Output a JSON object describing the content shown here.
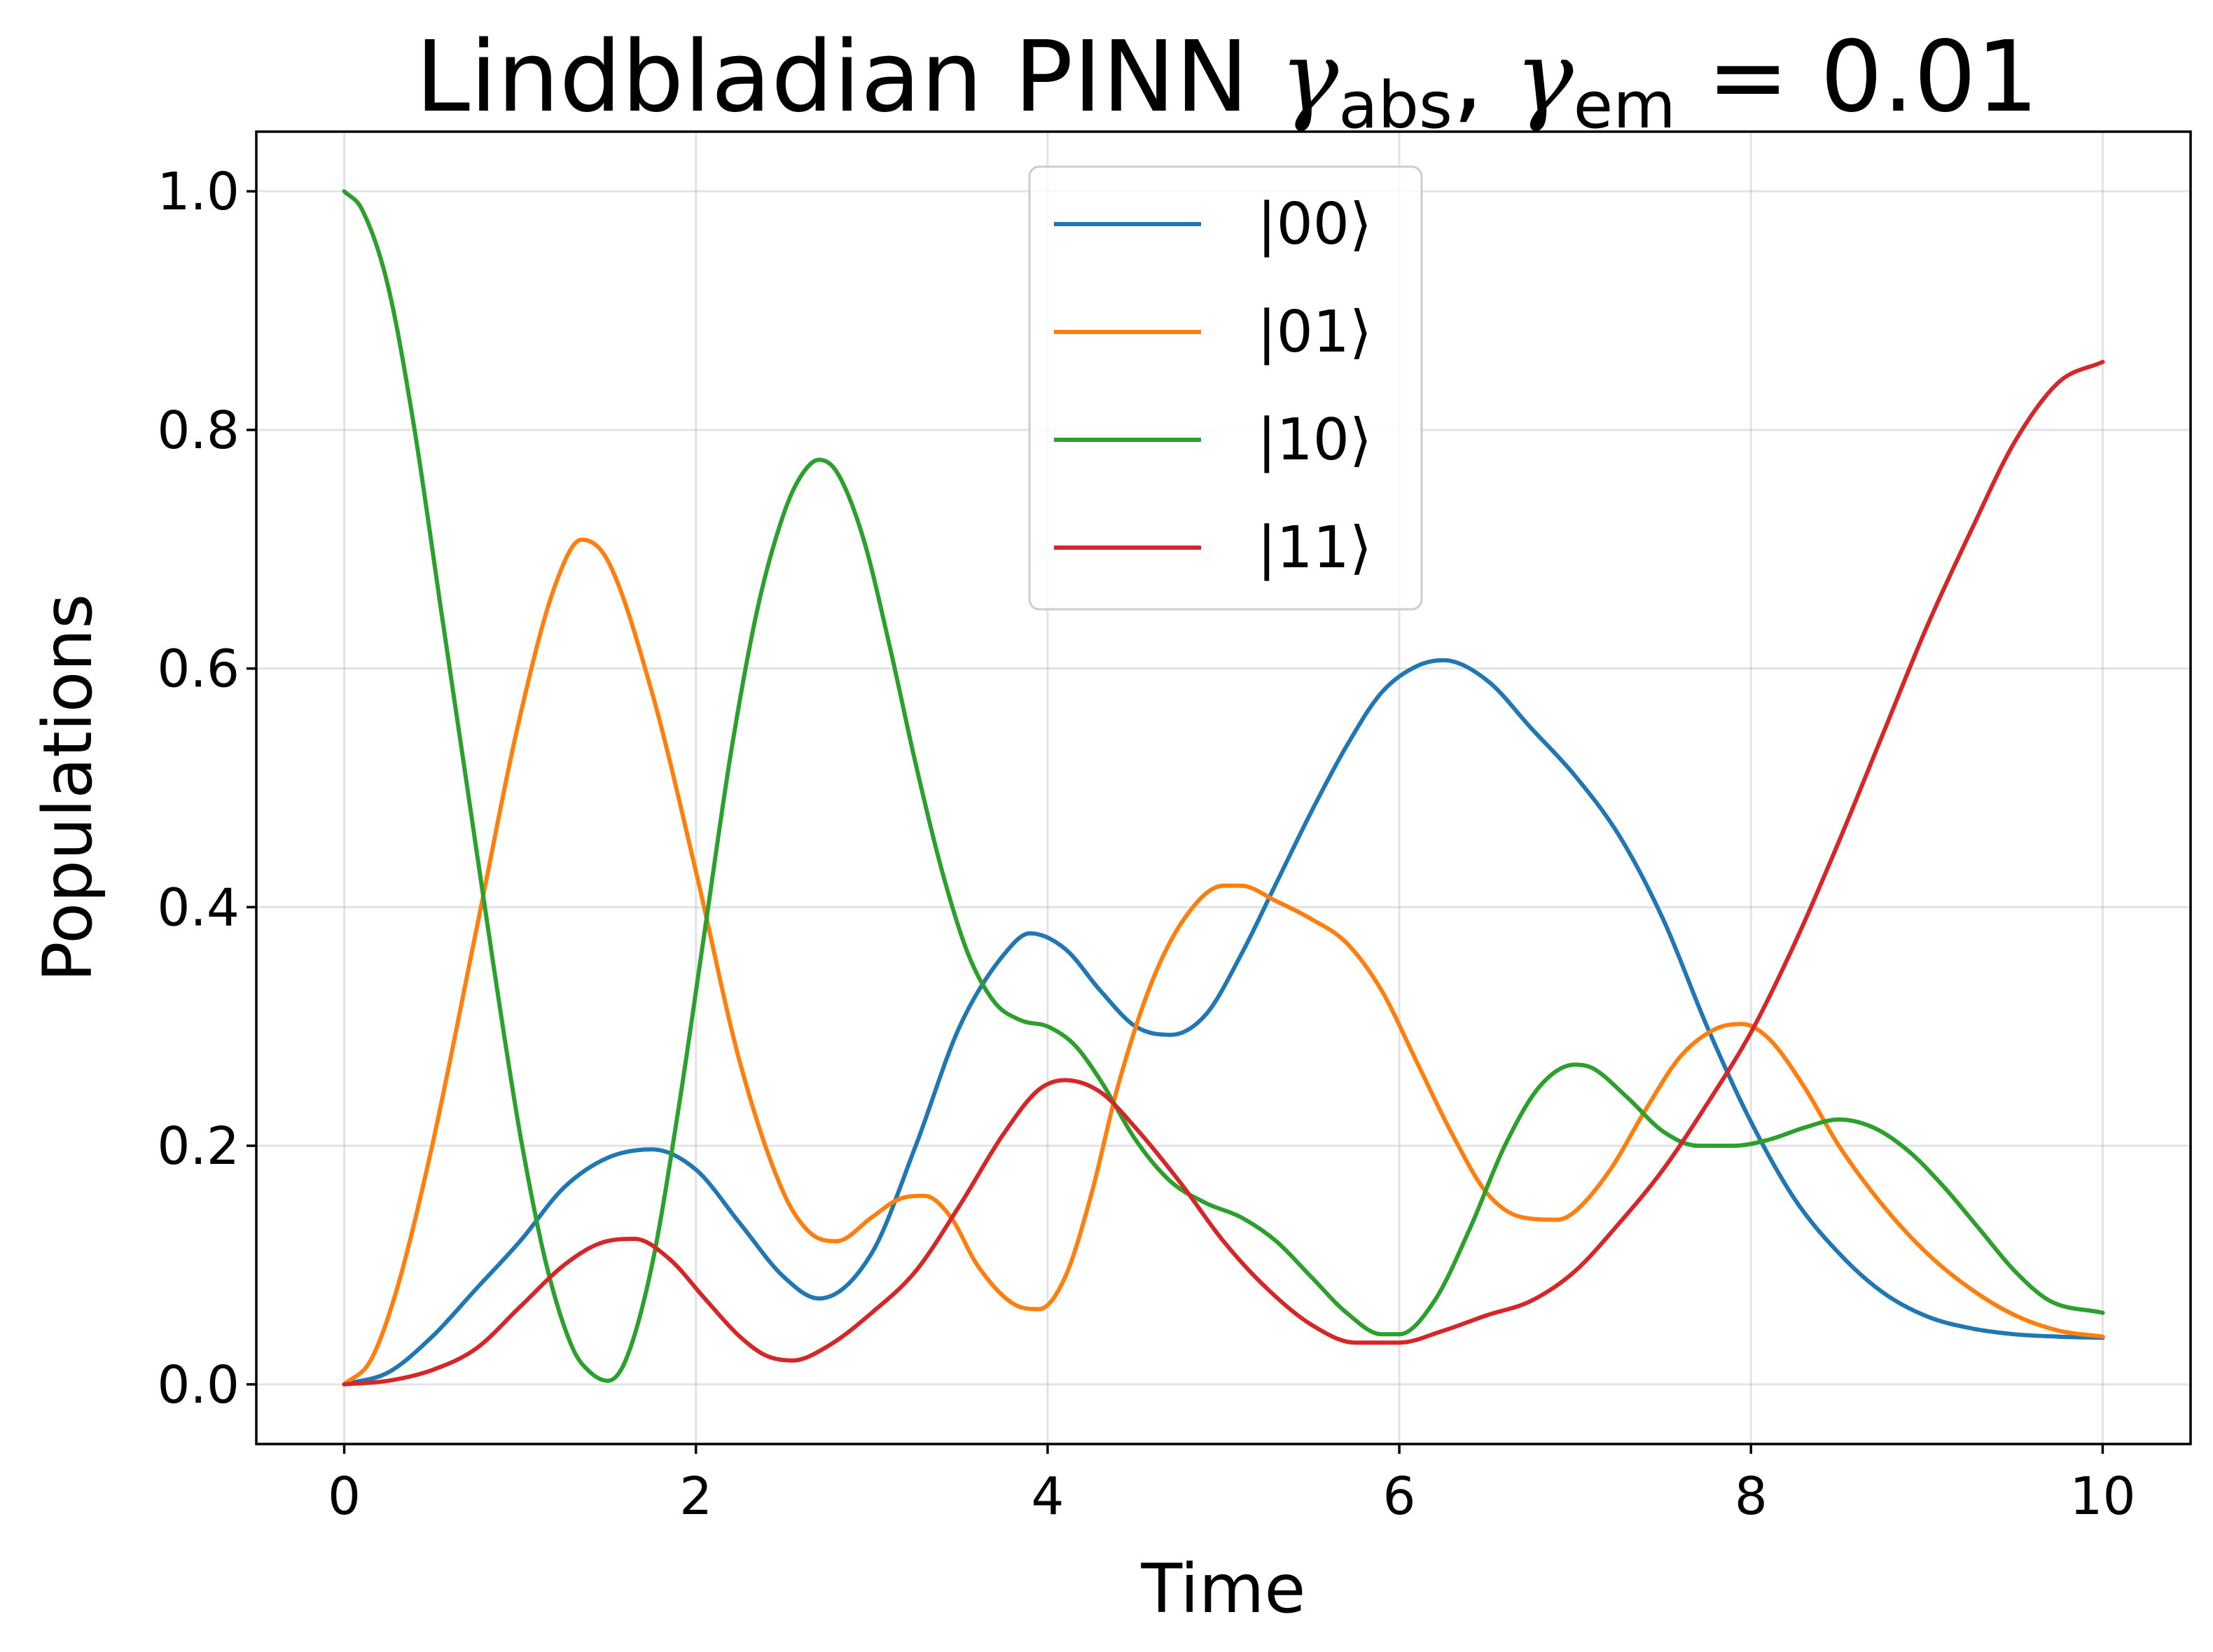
{
  "chart_data": {
    "type": "line",
    "title": "Lindbladian PINN γabs, γem = 0.01",
    "title_parts": {
      "prefix": "Lindbladian PINN ",
      "gamma": "γ",
      "sub1": "abs",
      "comma": ", ",
      "sub2": "em",
      "suffix": " = 0.01"
    },
    "xlabel": "Time",
    "ylabel": "Populations",
    "xlim": [
      -0.5,
      10.5
    ],
    "ylim": [
      -0.05,
      1.05
    ],
    "xticks": [
      0,
      2,
      4,
      6,
      8,
      10
    ],
    "yticks": [
      0.0,
      0.2,
      0.4,
      0.6,
      0.8,
      1.0
    ],
    "xtick_labels": [
      "0",
      "2",
      "4",
      "6",
      "8",
      "10"
    ],
    "ytick_labels": [
      "0.0",
      "0.2",
      "0.4",
      "0.6",
      "0.8",
      "1.0"
    ],
    "grid": true,
    "legend_position": "top-center",
    "series": [
      {
        "name": "|00⟩",
        "color": "#1f77b4",
        "x": [
          0,
          0.25,
          0.5,
          0.75,
          1.0,
          1.25,
          1.5,
          1.75,
          2.0,
          2.25,
          2.5,
          2.7,
          3.0,
          3.25,
          3.5,
          3.75,
          3.9,
          4.1,
          4.3,
          4.5,
          4.7,
          4.9,
          5.1,
          5.3,
          5.5,
          5.7,
          5.9,
          6.1,
          6.25,
          6.5,
          6.75,
          7.0,
          7.25,
          7.5,
          7.75,
          8.0,
          8.25,
          8.5,
          8.75,
          9.0,
          9.25,
          9.5,
          9.75,
          10.0
        ],
        "y": [
          0.0,
          0.01,
          0.04,
          0.08,
          0.12,
          0.165,
          0.19,
          0.197,
          0.18,
          0.135,
          0.09,
          0.072,
          0.11,
          0.2,
          0.3,
          0.36,
          0.378,
          0.365,
          0.33,
          0.3,
          0.293,
          0.31,
          0.36,
          0.42,
          0.48,
          0.535,
          0.58,
          0.602,
          0.607,
          0.59,
          0.55,
          0.51,
          0.46,
          0.39,
          0.3,
          0.22,
          0.155,
          0.11,
          0.077,
          0.057,
          0.047,
          0.042,
          0.04,
          0.039
        ]
      },
      {
        "name": "|01⟩",
        "color": "#ff7f0e",
        "x": [
          0,
          0.15,
          0.3,
          0.5,
          0.75,
          1.0,
          1.2,
          1.35,
          1.5,
          1.75,
          2.0,
          2.25,
          2.5,
          2.65,
          2.8,
          3.0,
          3.15,
          3.3,
          3.45,
          3.6,
          3.8,
          3.95,
          4.1,
          4.25,
          4.4,
          4.6,
          4.8,
          5.0,
          5.1,
          5.3,
          5.5,
          5.7,
          5.9,
          6.1,
          6.3,
          6.5,
          6.7,
          6.9,
          7.0,
          7.2,
          7.4,
          7.6,
          7.8,
          7.95,
          8.1,
          8.3,
          8.5,
          8.75,
          9.0,
          9.25,
          9.5,
          9.75,
          10.0
        ],
        "y": [
          0.0,
          0.02,
          0.08,
          0.2,
          0.38,
          0.56,
          0.67,
          0.708,
          0.69,
          0.58,
          0.43,
          0.27,
          0.16,
          0.127,
          0.12,
          0.14,
          0.155,
          0.158,
          0.14,
          0.1,
          0.068,
          0.063,
          0.09,
          0.16,
          0.25,
          0.34,
          0.395,
          0.418,
          0.418,
          0.405,
          0.39,
          0.37,
          0.33,
          0.27,
          0.21,
          0.16,
          0.14,
          0.138,
          0.145,
          0.18,
          0.23,
          0.275,
          0.298,
          0.302,
          0.29,
          0.25,
          0.2,
          0.15,
          0.11,
          0.08,
          0.058,
          0.045,
          0.04
        ]
      },
      {
        "name": "|10⟩",
        "color": "#2ca02c",
        "x": [
          0,
          0.1,
          0.25,
          0.4,
          0.55,
          0.7,
          0.85,
          1.0,
          1.15,
          1.3,
          1.4,
          1.5,
          1.6,
          1.75,
          1.9,
          2.05,
          2.2,
          2.35,
          2.5,
          2.6,
          2.7,
          2.8,
          2.95,
          3.1,
          3.25,
          3.4,
          3.55,
          3.7,
          3.85,
          4.0,
          4.15,
          4.3,
          4.5,
          4.7,
          4.9,
          5.1,
          5.3,
          5.5,
          5.7,
          5.9,
          6.0,
          6.2,
          6.4,
          6.6,
          6.8,
          7.0,
          7.1,
          7.3,
          7.5,
          7.7,
          7.9,
          8.1,
          8.3,
          8.5,
          8.7,
          8.9,
          9.1,
          9.3,
          9.5,
          9.7,
          10.0
        ],
        "y": [
          1.0,
          0.985,
          0.92,
          0.8,
          0.65,
          0.5,
          0.35,
          0.21,
          0.1,
          0.03,
          0.01,
          0.003,
          0.02,
          0.1,
          0.23,
          0.38,
          0.53,
          0.65,
          0.73,
          0.762,
          0.775,
          0.765,
          0.71,
          0.62,
          0.52,
          0.43,
          0.36,
          0.32,
          0.305,
          0.3,
          0.285,
          0.255,
          0.205,
          0.17,
          0.152,
          0.14,
          0.12,
          0.09,
          0.06,
          0.042,
          0.042,
          0.07,
          0.13,
          0.2,
          0.25,
          0.268,
          0.265,
          0.24,
          0.212,
          0.2,
          0.2,
          0.205,
          0.215,
          0.222,
          0.215,
          0.195,
          0.165,
          0.13,
          0.095,
          0.07,
          0.06
        ]
      },
      {
        "name": "|11⟩",
        "color": "#d62728",
        "x": [
          0,
          0.25,
          0.5,
          0.75,
          1.0,
          1.25,
          1.45,
          1.65,
          1.85,
          2.05,
          2.25,
          2.4,
          2.55,
          2.75,
          3.0,
          3.25,
          3.5,
          3.75,
          3.95,
          4.1,
          4.3,
          4.5,
          4.75,
          5.0,
          5.25,
          5.5,
          5.75,
          6.0,
          6.25,
          6.5,
          6.75,
          7.0,
          7.25,
          7.5,
          7.75,
          8.0,
          8.25,
          8.5,
          8.75,
          9.0,
          9.25,
          9.5,
          9.75,
          10.0
        ],
        "y": [
          0.0,
          0.003,
          0.012,
          0.03,
          0.065,
          0.1,
          0.118,
          0.122,
          0.105,
          0.072,
          0.04,
          0.024,
          0.02,
          0.032,
          0.06,
          0.095,
          0.15,
          0.21,
          0.247,
          0.255,
          0.245,
          0.215,
          0.17,
          0.12,
          0.08,
          0.05,
          0.035,
          0.035,
          0.045,
          0.058,
          0.07,
          0.095,
          0.135,
          0.18,
          0.235,
          0.295,
          0.37,
          0.455,
          0.545,
          0.635,
          0.715,
          0.79,
          0.84,
          0.857
        ]
      }
    ]
  }
}
